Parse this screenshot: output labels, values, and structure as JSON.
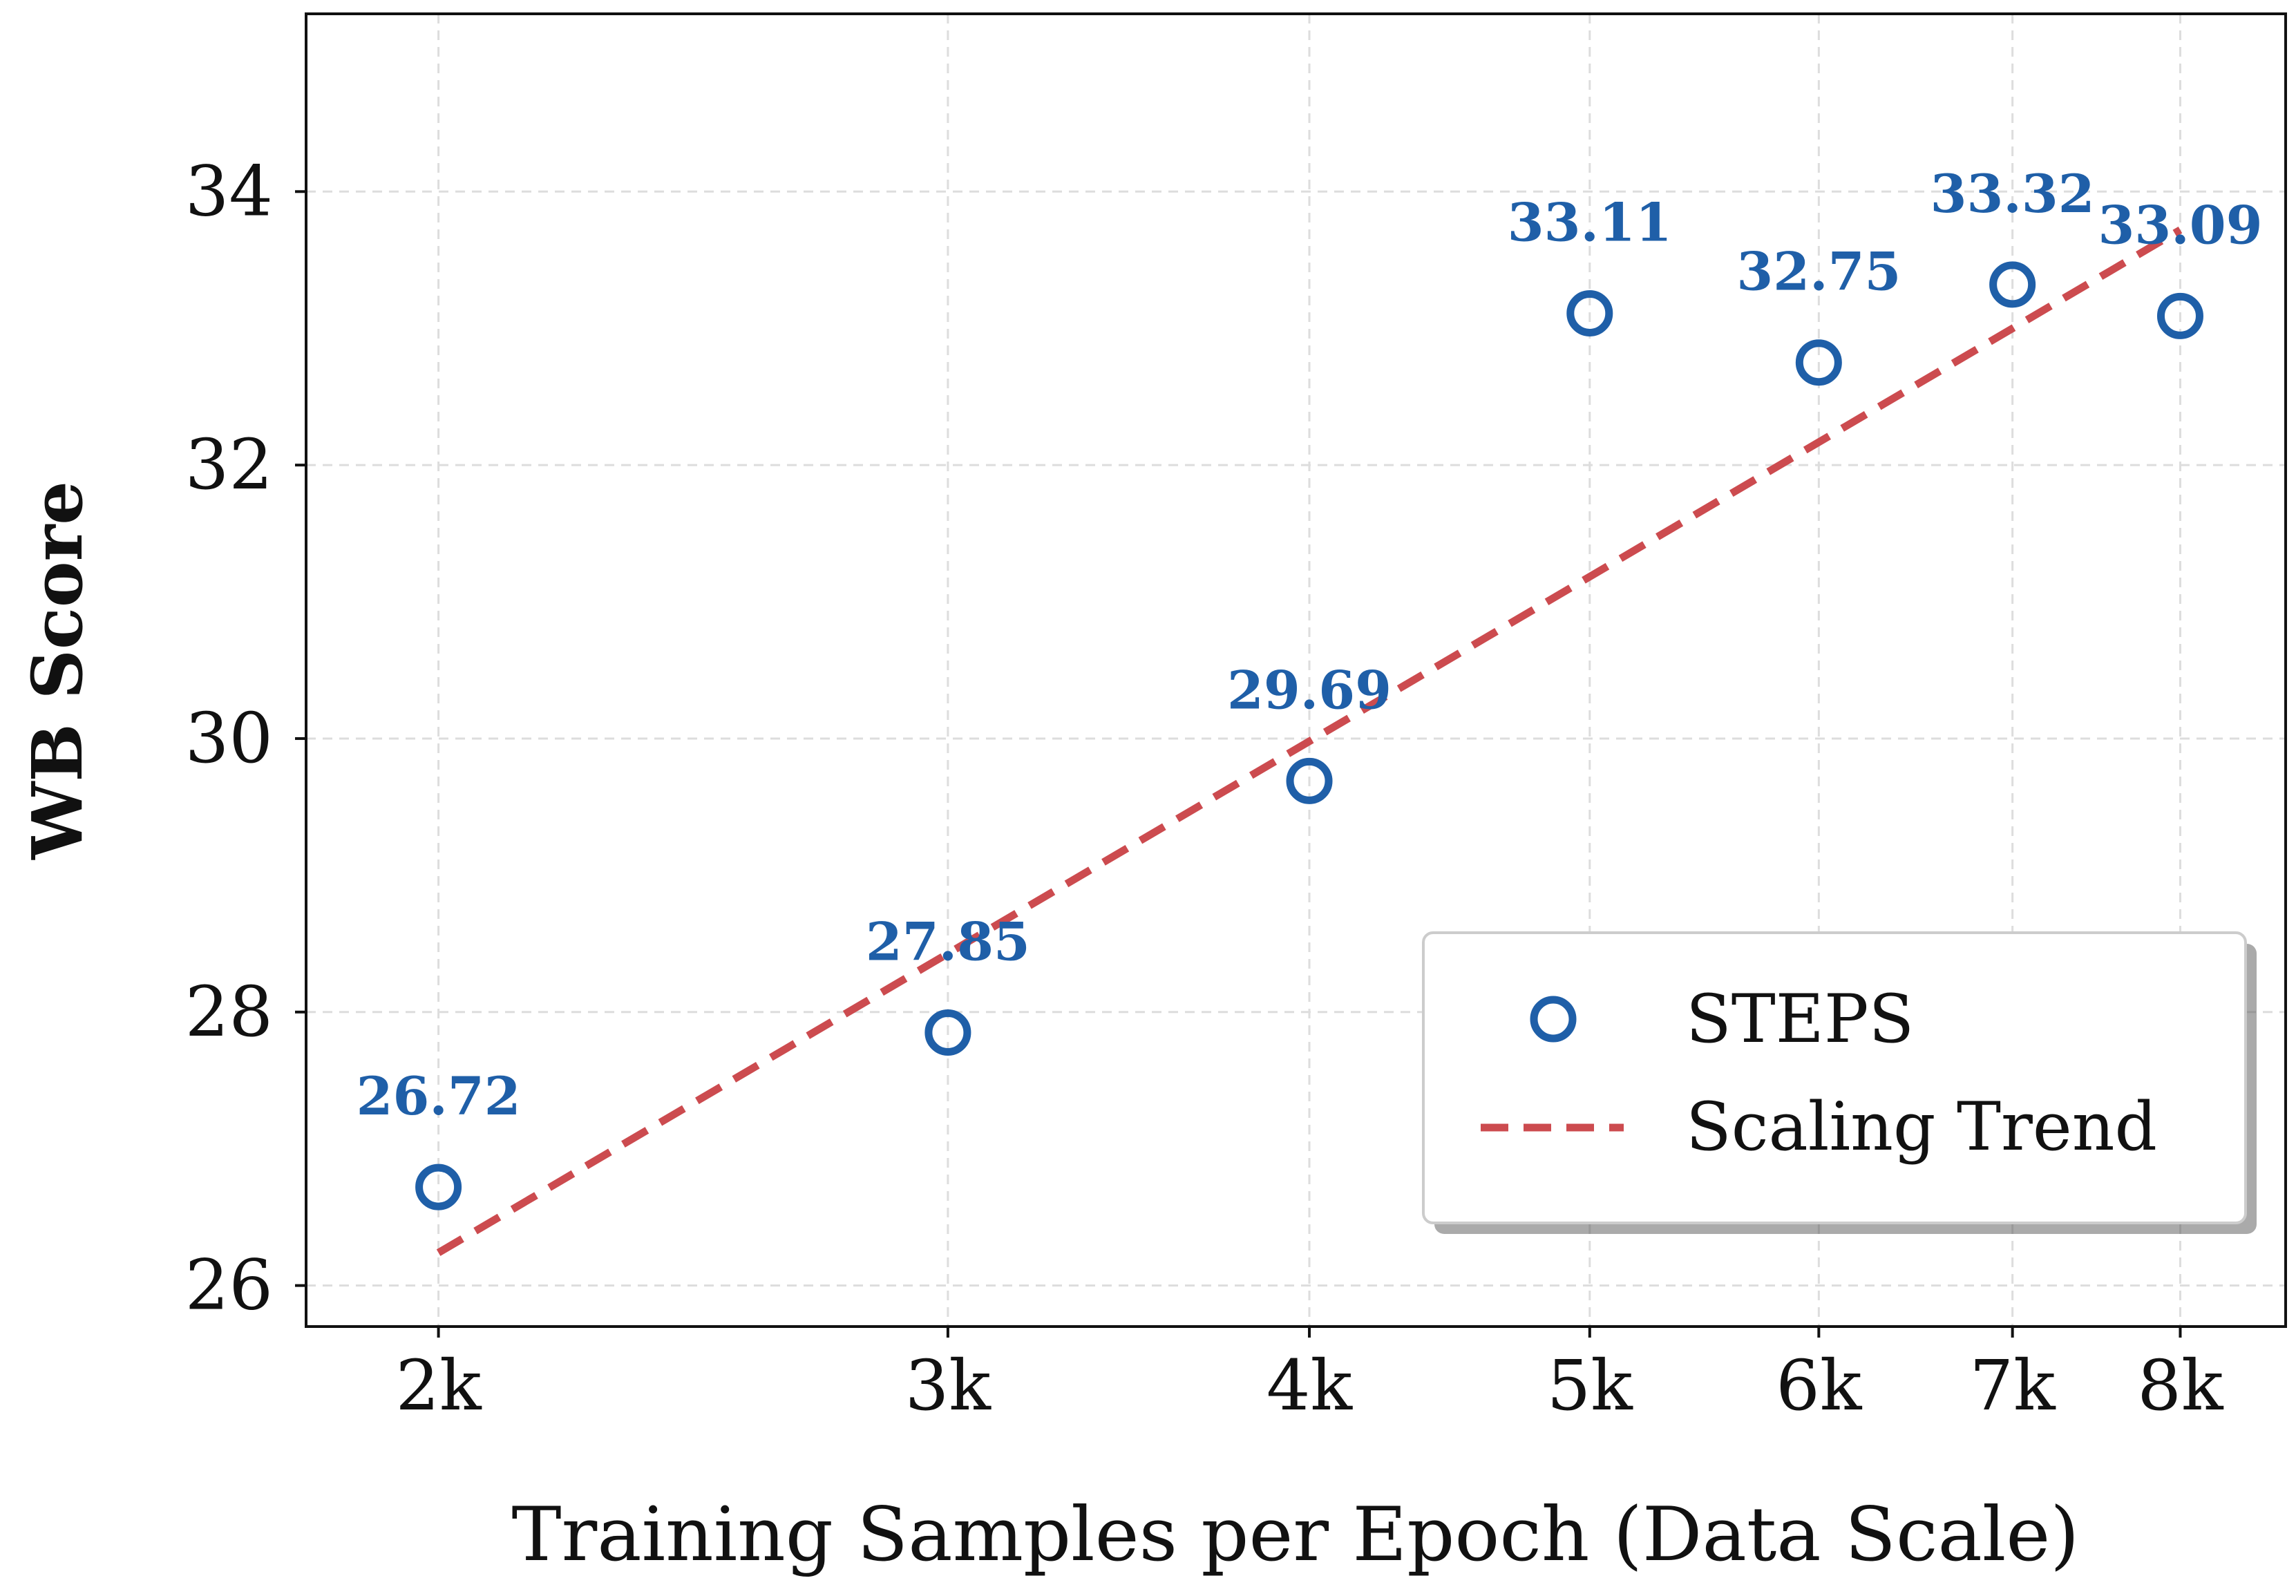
{
  "chart_data": {
    "type": "scatter",
    "title": "",
    "xlabel": "Training Samples per Epoch (Data Scale)",
    "ylabel": "WB Score",
    "x_scale": "log",
    "x": [
      2000,
      3000,
      4000,
      5000,
      6000,
      7000,
      8000
    ],
    "x_tick_labels": [
      "2k",
      "3k",
      "4k",
      "5k",
      "6k",
      "7k",
      "8k"
    ],
    "xlim": [
      1800,
      8700
    ],
    "ylim": [
      25.7,
      35.3
    ],
    "y_ticks": [
      26,
      28,
      30,
      32,
      34
    ],
    "grid": true,
    "series": [
      {
        "name": "STEPS",
        "kind": "scatter",
        "marker": "hollow-circle",
        "color": "#1f5fa8",
        "values": [
          26.72,
          27.85,
          29.69,
          33.11,
          32.75,
          33.32,
          33.09
        ],
        "data_labels": [
          "26.72",
          "27.85",
          "29.69",
          "33.11",
          "32.75",
          "33.32",
          "33.09"
        ]
      },
      {
        "name": "Scaling Trend",
        "kind": "line",
        "style": "dashed",
        "color": "#cc4b4f",
        "x": [
          2000,
          8000
        ],
        "values": [
          26.24,
          33.72
        ]
      }
    ],
    "legend": {
      "position": "bottom-right",
      "entries": [
        "STEPS",
        "Scaling Trend"
      ]
    }
  }
}
